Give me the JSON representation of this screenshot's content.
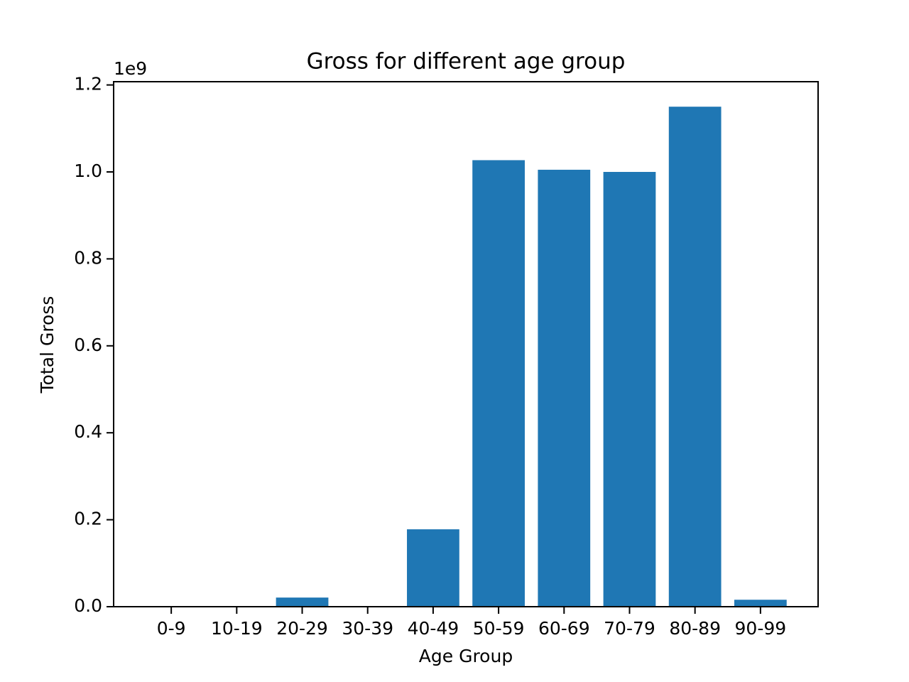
{
  "chart_data": {
    "type": "bar",
    "title": "Gross for different age group",
    "x_label": "Age Group",
    "y_label": "Total Gross",
    "offset_text": "1e9",
    "categories": [
      "0-9",
      "10-19",
      "20-29",
      "30-39",
      "40-49",
      "50-59",
      "60-69",
      "70-79",
      "80-89",
      "90-99"
    ],
    "values": [
      0,
      0,
      21000000,
      0,
      178000000,
      1027000000,
      1005000000,
      1000000000,
      1150000000,
      16000000
    ],
    "color": "#1f77b4",
    "ylim": [
      0,
      1207500000
    ],
    "yticks": [
      {
        "value": 0,
        "label": "0.0"
      },
      {
        "value": 200000000,
        "label": "0.2"
      },
      {
        "value": 400000000,
        "label": "0.4"
      },
      {
        "value": 600000000,
        "label": "0.6"
      },
      {
        "value": 800000000,
        "label": "0.8"
      },
      {
        "value": 1000000000,
        "label": "1.0"
      },
      {
        "value": 1200000000,
        "label": "1.2"
      }
    ],
    "grid": false
  }
}
